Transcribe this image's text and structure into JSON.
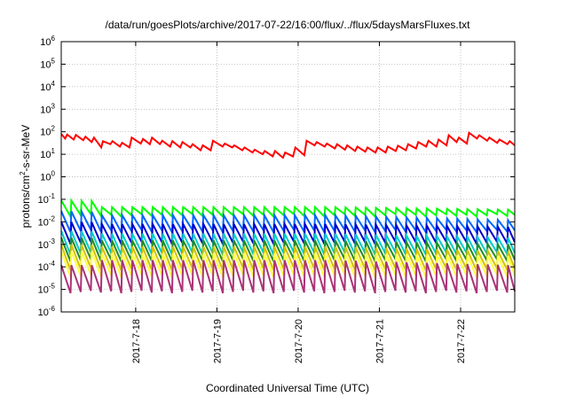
{
  "chart_data": {
    "type": "line",
    "title": "/data/run/goesPlots/archive/2017-07-22/16:00/flux/../flux/5daysMarsFluxes.txt",
    "xlabel": "Coordinated Universal Time (UTC)",
    "ylabel_parts": [
      "protons/cm",
      "2",
      "-s-sr-MeV"
    ],
    "y_scale": "log",
    "ylim": [
      1e-06,
      1000000.0
    ],
    "y_ticks": [
      {
        "base": "10",
        "exp": "-6",
        "value": -6
      },
      {
        "base": "10",
        "exp": "-5",
        "value": -5
      },
      {
        "base": "10",
        "exp": "-4",
        "value": -4
      },
      {
        "base": "10",
        "exp": "-3",
        "value": -3
      },
      {
        "base": "10",
        "exp": "-2",
        "value": -2
      },
      {
        "base": "10",
        "exp": "-1",
        "value": -1
      },
      {
        "base": "10",
        "exp": "0",
        "value": 0
      },
      {
        "base": "10",
        "exp": "1",
        "value": 1
      },
      {
        "base": "10",
        "exp": "2",
        "value": 2
      },
      {
        "base": "10",
        "exp": "3",
        "value": 3
      },
      {
        "base": "10",
        "exp": "4",
        "value": 4
      },
      {
        "base": "10",
        "exp": "5",
        "value": 5
      },
      {
        "base": "10",
        "exp": "6",
        "value": 6
      }
    ],
    "xlim": [
      "2017-07-17 02:00",
      "2017-07-22 16:00"
    ],
    "x_ticks": [
      {
        "label": "2017-7-18",
        "value": "2017-07-18 00:00"
      },
      {
        "label": "2017-7-19",
        "value": "2017-07-19 00:00"
      },
      {
        "label": "2017-7-20",
        "value": "2017-07-20 00:00"
      },
      {
        "label": "2017-7-21",
        "value": "2017-07-21 00:00"
      },
      {
        "label": "2017-7-22",
        "value": "2017-07-22 00:00"
      }
    ],
    "grid": true,
    "series": [
      {
        "color": "#ff0000",
        "points": [
          [
            "2017-07-17 02:00",
            80
          ],
          [
            "2017-07-17 03:10",
            50
          ],
          [
            "2017-07-17 03:45",
            75
          ],
          [
            "2017-07-17 05:40",
            45
          ],
          [
            "2017-07-17 06:20",
            72
          ],
          [
            "2017-07-17 08:30",
            42
          ],
          [
            "2017-07-17 09:10",
            60
          ],
          [
            "2017-07-17 11:00",
            35
          ],
          [
            "2017-07-17 11:40",
            55
          ],
          [
            "2017-07-17 13:50",
            20
          ],
          [
            "2017-07-17 14:20",
            38
          ],
          [
            "2017-07-17 16:30",
            28
          ],
          [
            "2017-07-17 17:10",
            38
          ],
          [
            "2017-07-17 19:20",
            22
          ],
          [
            "2017-07-17 20:00",
            32
          ],
          [
            "2017-07-17 22:10",
            20
          ],
          [
            "2017-07-17 22:50",
            55
          ],
          [
            "2017-07-18 01:30",
            30
          ],
          [
            "2017-07-18 02:10",
            48
          ],
          [
            "2017-07-18 04:10",
            28
          ],
          [
            "2017-07-18 04:50",
            55
          ],
          [
            "2017-07-18 07:10",
            28
          ],
          [
            "2017-07-18 07:50",
            40
          ],
          [
            "2017-07-18 10:10",
            22
          ],
          [
            "2017-07-18 10:50",
            38
          ],
          [
            "2017-07-18 13:10",
            20
          ],
          [
            "2017-07-18 13:50",
            35
          ],
          [
            "2017-07-18 16:10",
            20
          ],
          [
            "2017-07-18 16:50",
            28
          ],
          [
            "2017-07-18 19:10",
            15
          ],
          [
            "2017-07-18 19:50",
            25
          ],
          [
            "2017-07-18 22:10",
            15
          ],
          [
            "2017-07-18 22:50",
            40
          ],
          [
            "2017-07-19 01:40",
            22
          ],
          [
            "2017-07-19 02:20",
            30
          ],
          [
            "2017-07-19 04:30",
            20
          ],
          [
            "2017-07-19 05:10",
            25
          ],
          [
            "2017-07-19 07:30",
            15
          ],
          [
            "2017-07-19 08:10",
            20
          ],
          [
            "2017-07-19 10:30",
            12
          ],
          [
            "2017-07-19 11:10",
            16
          ],
          [
            "2017-07-19 13:30",
            10
          ],
          [
            "2017-07-19 14:10",
            14
          ],
          [
            "2017-07-19 16:30",
            8
          ],
          [
            "2017-07-19 17:10",
            14
          ],
          [
            "2017-07-19 19:30",
            7
          ],
          [
            "2017-07-19 20:10",
            12
          ],
          [
            "2017-07-19 22:30",
            8
          ],
          [
            "2017-07-19 23:10",
            20
          ],
          [
            "2017-07-20 01:50",
            9
          ],
          [
            "2017-07-20 02:30",
            40
          ],
          [
            "2017-07-20 04:50",
            25
          ],
          [
            "2017-07-20 05:30",
            35
          ],
          [
            "2017-07-20 07:50",
            22
          ],
          [
            "2017-07-20 08:30",
            30
          ],
          [
            "2017-07-20 10:50",
            18
          ],
          [
            "2017-07-20 11:30",
            28
          ],
          [
            "2017-07-20 13:50",
            16
          ],
          [
            "2017-07-20 14:30",
            25
          ],
          [
            "2017-07-20 16:50",
            14
          ],
          [
            "2017-07-20 17:30",
            22
          ],
          [
            "2017-07-20 19:50",
            13
          ],
          [
            "2017-07-20 20:30",
            20
          ],
          [
            "2017-07-20 22:50",
            12
          ],
          [
            "2017-07-20 23:30",
            20
          ],
          [
            "2017-07-21 01:50",
            12
          ],
          [
            "2017-07-21 02:30",
            22
          ],
          [
            "2017-07-21 04:50",
            14
          ],
          [
            "2017-07-21 05:30",
            24
          ],
          [
            "2017-07-21 07:50",
            15
          ],
          [
            "2017-07-21 08:30",
            28
          ],
          [
            "2017-07-21 10:50",
            18
          ],
          [
            "2017-07-21 11:30",
            35
          ],
          [
            "2017-07-21 13:50",
            22
          ],
          [
            "2017-07-21 14:30",
            40
          ],
          [
            "2017-07-21 16:50",
            22
          ],
          [
            "2017-07-21 17:30",
            45
          ],
          [
            "2017-07-21 19:50",
            25
          ],
          [
            "2017-07-21 20:30",
            70
          ],
          [
            "2017-07-21 22:50",
            35
          ],
          [
            "2017-07-21 23:30",
            55
          ],
          [
            "2017-07-22 01:50",
            30
          ],
          [
            "2017-07-22 02:30",
            90
          ],
          [
            "2017-07-22 04:50",
            50
          ],
          [
            "2017-07-22 05:30",
            70
          ],
          [
            "2017-07-22 07:50",
            40
          ],
          [
            "2017-07-22 08:30",
            55
          ],
          [
            "2017-07-22 10:50",
            32
          ],
          [
            "2017-07-22 11:30",
            45
          ],
          [
            "2017-07-22 13:50",
            28
          ],
          [
            "2017-07-22 14:30",
            38
          ],
          [
            "2017-07-22 16:00",
            25
          ]
        ]
      },
      {
        "color": "#00ff00",
        "peak": 0.045,
        "trough": 0.02,
        "first_peak": 0.09,
        "last_peak": 0.035
      },
      {
        "color": "#0066ff",
        "peak": 0.02,
        "trough": 0.004,
        "first_peak": 0.03,
        "last_peak": 0.012
      },
      {
        "color": "#0000cc",
        "peak": 0.008,
        "trough": 0.0012,
        "first_peak": 0.01,
        "last_peak": 0.006
      },
      {
        "color": "#00cccc",
        "peak": 0.003,
        "trough": 0.0004,
        "first_peak": 0.004,
        "last_peak": 0.002
      },
      {
        "color": "#228b22",
        "peak": 0.0015,
        "trough": 0.0002,
        "first_peak": 0.002,
        "last_peak": 0.001
      },
      {
        "color": "#d4c200",
        "peak": 0.0008,
        "trough": 8e-05,
        "first_peak": 0.001,
        "last_peak": 0.0005
      },
      {
        "color": "#ffff44",
        "peak": 0.0004,
        "trough": 4e-05,
        "first_peak": 0.0005,
        "last_peak": 0.0003
      },
      {
        "color": "#aa3377",
        "peak": 0.0002,
        "trough": 8e-06,
        "first_peak": 0.00012,
        "last_peak": 0.00012
      }
    ]
  }
}
